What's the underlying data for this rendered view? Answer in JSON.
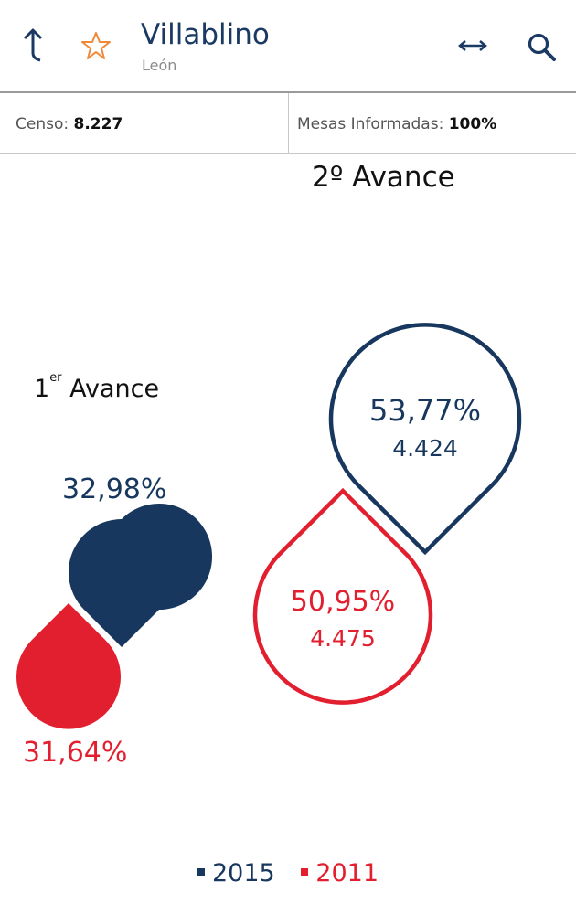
{
  "header": {
    "title": "Villablino",
    "subtitle": "León",
    "icons": [
      "back-arrow-icon",
      "star-icon",
      "expand-arrows-icon",
      "search-icon"
    ]
  },
  "stats": {
    "censo_label": "Censo:",
    "censo_value": "8.227",
    "mesas_label": "Mesas Informadas:",
    "mesas_value": "100%"
  },
  "chart_data": {
    "type": "bubble",
    "series": [
      {
        "name": "2015",
        "color": "#18375e"
      },
      {
        "name": "2011",
        "color": "#e21f2f"
      }
    ],
    "avances": [
      {
        "label": "1",
        "label_sup": "er",
        "label_text": "Avance",
        "values": {
          "2015": {
            "pct": "32,98%"
          },
          "2011": {
            "pct": "31,64%"
          }
        }
      },
      {
        "label": "2º Avance",
        "values": {
          "2015": {
            "pct": "53,77%",
            "count": "4.424"
          },
          "2011": {
            "pct": "50,95%",
            "count": "4.475"
          }
        }
      }
    ]
  },
  "legend": {
    "items": [
      {
        "label": "2015",
        "color": "#18375e"
      },
      {
        "label": "2011",
        "color": "#e21f2f"
      }
    ]
  }
}
